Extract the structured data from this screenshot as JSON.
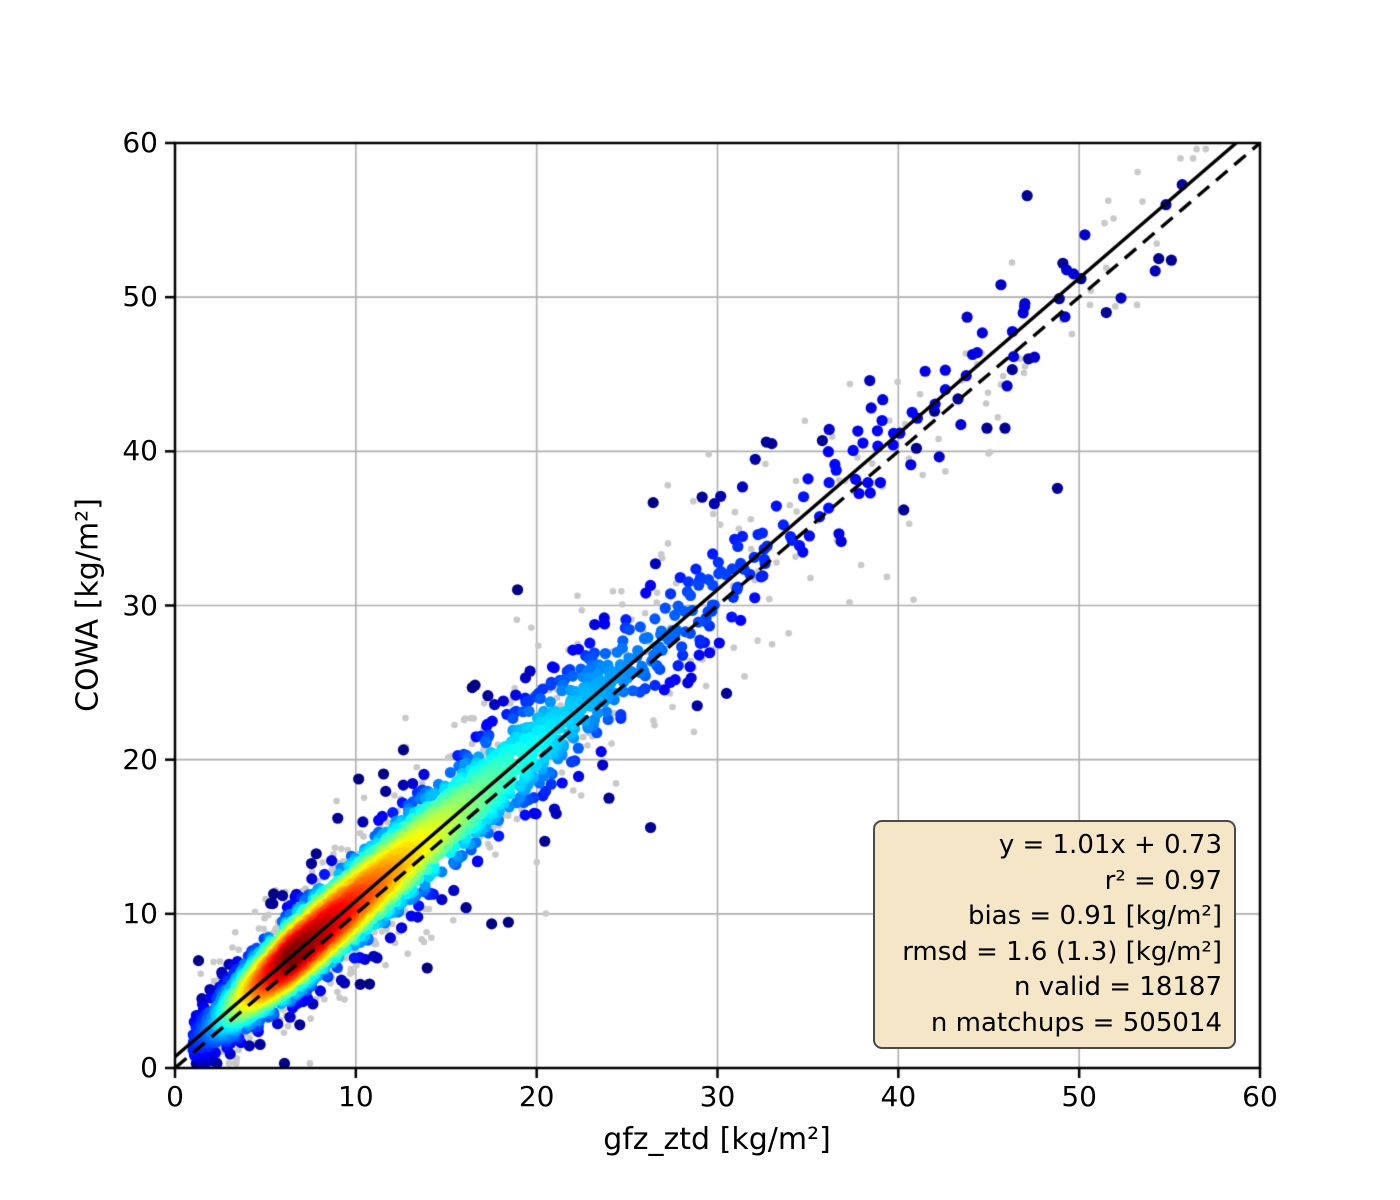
{
  "page": {
    "background": "#ffffff"
  },
  "chart_data": {
    "type": "scatter",
    "variant": "density-scatter-with-regression",
    "title": "",
    "xlabel": "gfz_ztd [kg/m²]",
    "ylabel": "COWA [kg/m²]",
    "xlim": [
      0,
      60
    ],
    "ylim": [
      0,
      60
    ],
    "xticks": [
      0,
      10,
      20,
      30,
      40,
      50,
      60
    ],
    "yticks": [
      0,
      10,
      20,
      30,
      40,
      50,
      60
    ],
    "xtick_labels": [
      "0",
      "10",
      "20",
      "30",
      "40",
      "50",
      "60"
    ],
    "ytick_labels": [
      "0",
      "10",
      "20",
      "30",
      "40",
      "50",
      "60"
    ],
    "grid": true,
    "legend": "none",
    "colormap": "jet",
    "colors": {
      "grid": "#b0b0b0",
      "spine": "#000000",
      "identity_line": "#000000",
      "fit_line": "#000000",
      "gray_points": "#c9c9c9",
      "density_low": "#000080",
      "density_high": "#8b0000",
      "stats_box_bg": "#f5e6c8",
      "stats_box_border": "#4a4a4a"
    },
    "identity_line": {
      "style": "dashed",
      "x0": 0,
      "y0": 0,
      "x1": 60,
      "y1": 60
    },
    "fit_line": {
      "style": "solid",
      "slope": 1.01,
      "intercept": 0.73
    },
    "stats": {
      "equation": "y = 1.01x + 0.73",
      "r2": "r² = 0.97",
      "bias": "bias = 0.91 [kg/m²]",
      "rmsd": "rmsd = 1.6 (1.3) [kg/m²]",
      "n_valid": "n valid = 18187",
      "n_matchups": "n matchups = 505014"
    },
    "stats_values": {
      "slope": 1.01,
      "intercept": 0.73,
      "r2": 0.97,
      "bias": 0.91,
      "rmsd": 1.6,
      "rmsd_unbiased": 1.3,
      "n_valid": 18187,
      "n_matchups": 505014
    },
    "density_cloud": {
      "description": "valid matchups colored by local point density (jet: dark red core along fit line at x 4-14, fading yellow/green/cyan/blue to navy fringe; nearly all navy beyond x≈30)",
      "n_points_drawn": 4200,
      "relation": {
        "slope": 1.01,
        "intercept": 0.73
      },
      "x_distribution": {
        "lognormal": {
          "weight": 0.8,
          "median": 8.2,
          "sigma": 0.55
        },
        "exponential": {
          "weight": 0.2,
          "offset": 1,
          "mean": 13
        }
      },
      "scatter_sigma": {
        "base": 0.8,
        "per_x": 0.05,
        "wide_fraction": 0.055,
        "wide_factor": 2.3
      },
      "x_range": [
        0.4,
        57.2
      ],
      "seed": 42
    },
    "gray_cloud": {
      "description": "all matchups shown as small light-gray dots beneath the colored cloud",
      "n_points_drawn": 950,
      "sigma_factor": 1.7,
      "seed": 7
    },
    "outliers_valid": [
      [
        6.9,
        2.8
      ],
      [
        9.0,
        16.2
      ],
      [
        16.1,
        10.4
      ],
      [
        24.0,
        17.5
      ],
      [
        26.3,
        15.6
      ],
      [
        30.5,
        24.3
      ],
      [
        32.7,
        40.6
      ],
      [
        33.0,
        40.5
      ],
      [
        35.8,
        40.7
      ],
      [
        40.3,
        36.2
      ],
      [
        41.0,
        40.2
      ],
      [
        42.0,
        42.6
      ],
      [
        43.3,
        43.4
      ],
      [
        44.9,
        41.5
      ],
      [
        45.9,
        41.5
      ],
      [
        46.3,
        45.3
      ],
      [
        47.2,
        46.0
      ],
      [
        48.8,
        37.6
      ],
      [
        48.9,
        49.9
      ],
      [
        49.1,
        52.2
      ],
      [
        50.1,
        51.2
      ],
      [
        51.5,
        49.0
      ],
      [
        54.4,
        52.5
      ],
      [
        55.1,
        52.4
      ],
      [
        54.8,
        56.0
      ],
      [
        55.7,
        57.3
      ]
    ],
    "outliers_matchups": [
      [
        26.0,
        29.5
      ],
      [
        28.7,
        21.8
      ],
      [
        31.5,
        25.4
      ],
      [
        34.0,
        36.5
      ],
      [
        36.6,
        34.2
      ],
      [
        37.3,
        30.2
      ],
      [
        38.0,
        40.5
      ],
      [
        39.5,
        42.0
      ],
      [
        40.6,
        35.3
      ],
      [
        41.2,
        43.7
      ],
      [
        42.6,
        38.7
      ],
      [
        43.5,
        44.6
      ],
      [
        44.6,
        46.4
      ],
      [
        45.5,
        42.2
      ],
      [
        47.0,
        45.5
      ],
      [
        49.6,
        47.6
      ],
      [
        50.6,
        49.5
      ],
      [
        51.4,
        54.8
      ],
      [
        51.5,
        51.9
      ],
      [
        51.9,
        55.1
      ],
      [
        52.0,
        49.4
      ],
      [
        53.2,
        49.5
      ],
      [
        53.5,
        56.2
      ],
      [
        55.6,
        59.0
      ],
      [
        56.3,
        59.0
      ]
    ]
  }
}
